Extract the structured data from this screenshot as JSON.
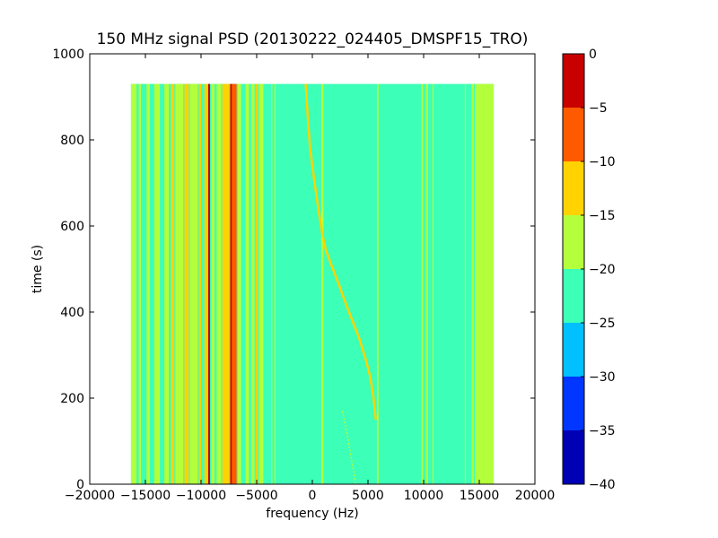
{
  "chart_data": {
    "type": "heatmap",
    "title": "150 MHz signal PSD (20130222_024405_DMSPF15_TRO)",
    "xlabel": "frequency (Hz)",
    "ylabel": "time (s)",
    "xlim": [
      -20000,
      20000
    ],
    "ylim": [
      0,
      1000
    ],
    "x_ticks": [
      -20000,
      -15000,
      -10000,
      -5000,
      0,
      5000,
      10000,
      15000,
      20000
    ],
    "y_ticks": [
      0,
      200,
      400,
      600,
      800,
      1000
    ],
    "data_extent": {
      "x": [
        -16300,
        16300
      ],
      "y": [
        0,
        930
      ]
    },
    "colorbar": {
      "levels": [
        -40,
        -35,
        -30,
        -25,
        -20,
        -15,
        -10,
        -5,
        0
      ],
      "ticks": [
        -40,
        -35,
        -30,
        -25,
        -20,
        -15,
        -10,
        -5,
        0
      ],
      "colors": [
        "#0000b4",
        "#0036ff",
        "#00c0ff",
        "#3cffb8",
        "#b4ff3c",
        "#ffd200",
        "#ff5a00",
        "#c80000"
      ]
    },
    "background_level": -25,
    "vertical_bands": [
      {
        "x": [
          -16300,
          -15800
        ],
        "level": -20
      },
      {
        "x": [
          -15600,
          -15400
        ],
        "level": -20
      },
      {
        "x": [
          -14900,
          -14600
        ],
        "level": -20
      },
      {
        "x": [
          -14200,
          -13700
        ],
        "level": -20
      },
      {
        "x": [
          -13300,
          -12900
        ],
        "level": -20
      },
      {
        "x": [
          -12700,
          -12400
        ],
        "level": -15
      },
      {
        "x": [
          -12300,
          -11600
        ],
        "level": -20
      },
      {
        "x": [
          -11500,
          -11100
        ],
        "level": -15
      },
      {
        "x": [
          -11000,
          -10300
        ],
        "level": -20
      },
      {
        "x": [
          -10200,
          -10000
        ],
        "level": -15
      },
      {
        "x": [
          -9700,
          -9400
        ],
        "level": -15
      },
      {
        "x": [
          -9350,
          -9200
        ],
        "level": -5
      },
      {
        "x": [
          -9100,
          -8800
        ],
        "level": -20
      },
      {
        "x": [
          -8600,
          -8200
        ],
        "level": -20
      },
      {
        "x": [
          -8100,
          -7500
        ],
        "level": -15
      },
      {
        "x": [
          -7400,
          -6800
        ],
        "level": -10
      },
      {
        "x": [
          -6700,
          -6400
        ],
        "level": -20
      },
      {
        "x": [
          -6000,
          -5700
        ],
        "level": -20
      },
      {
        "x": [
          -5500,
          -5200
        ],
        "level": -20
      },
      {
        "x": [
          -5100,
          -4900
        ],
        "level": -15
      },
      {
        "x": [
          -4800,
          -4400
        ],
        "level": -20
      },
      {
        "x": [
          -3700,
          -3600
        ],
        "level": -20
      },
      {
        "x": [
          -3400,
          -3300
        ],
        "level": -20
      },
      {
        "x": [
          800,
          1000
        ],
        "level": -20
      },
      {
        "x": [
          5800,
          5950
        ],
        "level": -20
      },
      {
        "x": [
          9800,
          9950
        ],
        "level": -20
      },
      {
        "x": [
          10200,
          10400
        ],
        "level": -20
      },
      {
        "x": [
          10800,
          10900
        ],
        "level": -20
      },
      {
        "x": [
          13700,
          13800
        ],
        "level": -20
      },
      {
        "x": [
          14300,
          14500
        ],
        "level": -20
      },
      {
        "x": [
          14600,
          16300
        ],
        "level": -20
      }
    ],
    "thin_lines": [
      {
        "x": -9280,
        "level": -5
      },
      {
        "x": -7300,
        "level": -5
      },
      {
        "x": -7100,
        "level": -10
      },
      {
        "x": -10100,
        "level": -15
      }
    ],
    "sweep_trace": {
      "level": -15,
      "points": [
        [
          -600,
          930
        ],
        [
          -400,
          850
        ],
        [
          -200,
          780
        ],
        [
          200,
          700
        ],
        [
          600,
          630
        ],
        [
          900,
          580
        ],
        [
          1200,
          545
        ],
        [
          1700,
          510
        ],
        [
          2300,
          470
        ],
        [
          3000,
          420
        ],
        [
          3600,
          380
        ],
        [
          4200,
          340
        ],
        [
          4800,
          290
        ],
        [
          5200,
          250
        ],
        [
          5500,
          200
        ],
        [
          5700,
          150
        ]
      ]
    },
    "faint_trace": {
      "level": -20,
      "points": [
        [
          2700,
          170
        ],
        [
          3100,
          120
        ],
        [
          3500,
          60
        ],
        [
          3900,
          0
        ]
      ]
    }
  }
}
